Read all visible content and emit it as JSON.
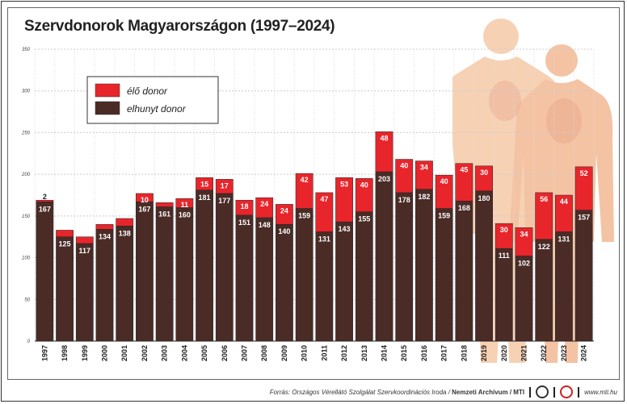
{
  "title": "Szervdonorok Magyarországon (1997–2024)",
  "footer": {
    "source": "Forrás: Országos Vérellátó Szolgálat Szervkoordinációs Iroda / ",
    "archive": "Nemzeti Archívum / MTI",
    "url": "www.mti.hu"
  },
  "chart_data": {
    "type": "bar",
    "stacked": true,
    "title": "Szervdonorok Magyarországon (1997–2024)",
    "categories": [
      "1997",
      "1998",
      "1999",
      "2000",
      "2001",
      "2002",
      "2003",
      "2004",
      "2005",
      "2006",
      "2007",
      "2008",
      "2009",
      "2010",
      "2011",
      "2012",
      "2013",
      "2014",
      "2015",
      "2016",
      "2017",
      "2018",
      "2019",
      "2020",
      "2021",
      "2022",
      "2023",
      "2024"
    ],
    "series": [
      {
        "name": "elhunyt donor",
        "color": "#4a2b26",
        "values": [
          167,
          125,
          117,
          134,
          138,
          167,
          161,
          160,
          181,
          177,
          151,
          148,
          140,
          159,
          131,
          143,
          155,
          203,
          178,
          182,
          159,
          168,
          180,
          111,
          102,
          122,
          131,
          157
        ]
      },
      {
        "name": "élő donor",
        "color": "#e8252b",
        "values": [
          2,
          8,
          8,
          6,
          9,
          10,
          5,
          11,
          15,
          17,
          18,
          24,
          24,
          42,
          47,
          53,
          40,
          48,
          40,
          34,
          40,
          45,
          30,
          30,
          34,
          56,
          44,
          52
        ]
      }
    ],
    "ylim": [
      0,
      350
    ],
    "yticks": [
      0,
      50,
      100,
      150,
      200,
      250,
      300,
      350
    ],
    "grid": true,
    "legend": "top-left"
  }
}
